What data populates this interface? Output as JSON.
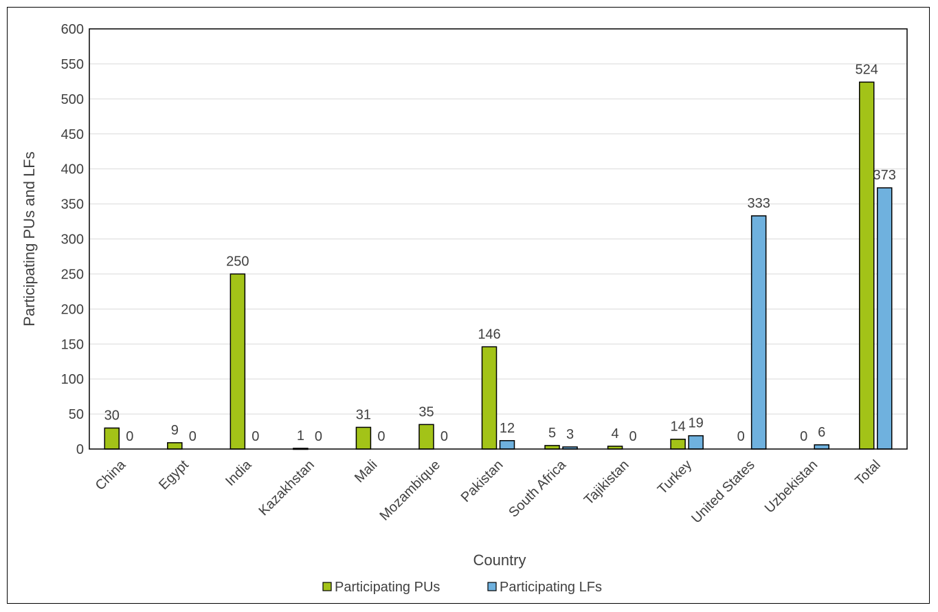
{
  "chart_data": {
    "type": "bar",
    "title": "",
    "xlabel": "Country",
    "ylabel": "Participating PUs and LFs",
    "ylim": [
      0,
      600
    ],
    "yticks": [
      0,
      50,
      100,
      150,
      200,
      250,
      300,
      350,
      400,
      450,
      500,
      550,
      600
    ],
    "grid": true,
    "legend_position": "bottom",
    "categories": [
      "China",
      "Egypt",
      "India",
      "Kazakhstan",
      "Mali",
      "Mozambique",
      "Pakistan",
      "South Africa",
      "Tajikistan",
      "Turkey",
      "United States",
      "Uzbekistan",
      "Total"
    ],
    "series": [
      {
        "name": "Participating PUs",
        "color": "#a3c318",
        "values": [
          30,
          9,
          250,
          1,
          31,
          35,
          146,
          5,
          4,
          14,
          0,
          0,
          524
        ]
      },
      {
        "name": "Participating LFs",
        "color": "#6fb1de",
        "values": [
          0,
          0,
          0,
          0,
          0,
          0,
          12,
          3,
          0,
          19,
          333,
          6,
          373
        ]
      }
    ]
  }
}
